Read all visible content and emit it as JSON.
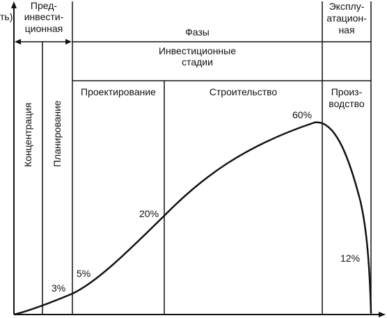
{
  "y_axis_label_fragment": "ть)",
  "phases": {
    "pre_investment": [
      "Пред-",
      "инвести-",
      "ционная"
    ],
    "phases_title": "Фазы",
    "operational": [
      "Эксплу-",
      "атацион-",
      "ная"
    ]
  },
  "investment_stages": [
    "Инвестиционные",
    "стадии"
  ],
  "substages": {
    "concentration": "Концентрация",
    "planning": "Планирование",
    "design": "Проектирование",
    "construction": "Строительство",
    "production": [
      "Произ-",
      "водство"
    ]
  },
  "curve_labels": [
    "3%",
    "5%",
    "20%",
    "60%",
    "12%"
  ],
  "colors": {
    "ink": "#111111",
    "background": "#ffffff"
  }
}
